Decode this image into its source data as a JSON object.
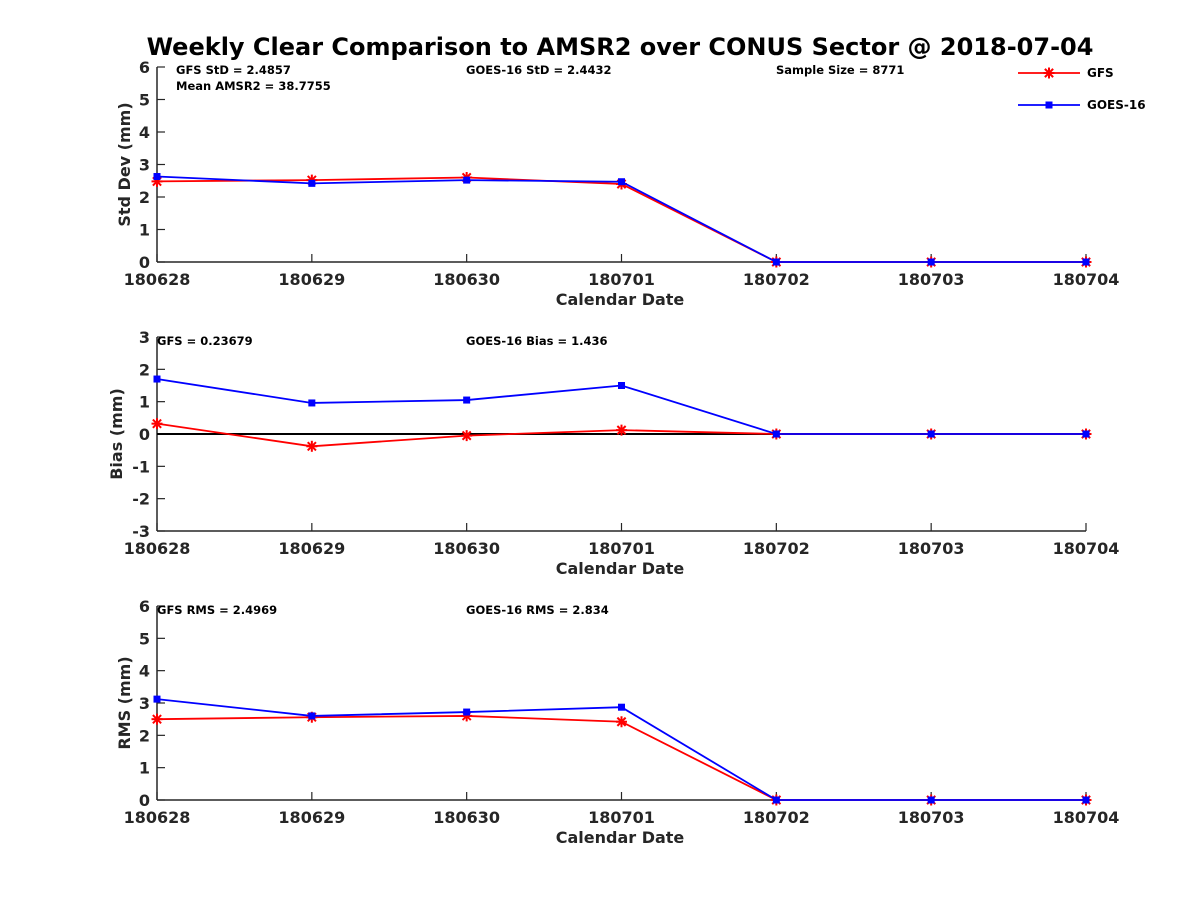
{
  "figure_title": "Weekly Clear Comparison to AMSR2 over CONUS Sector @ 2018-07-04",
  "legend": [
    {
      "name": "GFS",
      "color": "#ff0000",
      "marker": "asterisk"
    },
    {
      "name": "GOES-16",
      "color": "#0000ff",
      "marker": "square"
    }
  ],
  "chart_data": [
    {
      "type": "line",
      "categories": [
        "180628",
        "180629",
        "180630",
        "180701",
        "180702",
        "180703",
        "180704"
      ],
      "xlabel": "Calendar Date",
      "ylabel": "Std Dev (mm)",
      "ylim": [
        0,
        6
      ],
      "yticks": [
        "0",
        "1",
        "2",
        "3",
        "4",
        "5",
        "6"
      ],
      "zero_line": false,
      "annotations": [
        {
          "text": "GFS StD = 2.4857"
        },
        {
          "text": "Mean AMSR2 = 38.7755"
        },
        {
          "text": "GOES-16 StD = 2.4432"
        },
        {
          "text": "Sample Size = 8771"
        }
      ],
      "series": [
        {
          "name": "GFS",
          "color": "#ff0000",
          "marker": "asterisk",
          "values": [
            2.48,
            2.52,
            2.6,
            2.4,
            0,
            0,
            0
          ]
        },
        {
          "name": "GOES-16",
          "color": "#0000ff",
          "marker": "square",
          "values": [
            2.63,
            2.42,
            2.52,
            2.47,
            0,
            0,
            0
          ]
        }
      ]
    },
    {
      "type": "line",
      "categories": [
        "180628",
        "180629",
        "180630",
        "180701",
        "180702",
        "180703",
        "180704"
      ],
      "xlabel": "Calendar Date",
      "ylabel": "Bias (mm)",
      "ylim": [
        -3,
        3
      ],
      "yticks": [
        "-3",
        "-2",
        "-1",
        "0",
        "1",
        "2",
        "3"
      ],
      "zero_line": true,
      "annotations": [
        {
          "text": "GFS = 0.23679"
        },
        {
          "text": "GOES-16 Bias  = 1.436"
        }
      ],
      "series": [
        {
          "name": "GFS",
          "color": "#ff0000",
          "marker": "asterisk",
          "values": [
            0.32,
            -0.38,
            -0.05,
            0.12,
            0,
            0,
            0
          ]
        },
        {
          "name": "GOES-16",
          "color": "#0000ff",
          "marker": "square",
          "values": [
            1.7,
            0.96,
            1.05,
            1.5,
            0,
            0,
            0
          ]
        }
      ]
    },
    {
      "type": "line",
      "categories": [
        "180628",
        "180629",
        "180630",
        "180701",
        "180702",
        "180703",
        "180704"
      ],
      "xlabel": "Calendar Date",
      "ylabel": "RMS (mm)",
      "ylim": [
        0,
        6
      ],
      "yticks": [
        "0",
        "1",
        "2",
        "3",
        "4",
        "5",
        "6"
      ],
      "zero_line": false,
      "annotations": [
        {
          "text": "GFS RMS = 2.4969"
        },
        {
          "text": "GOES-16 RMS = 2.834"
        }
      ],
      "series": [
        {
          "name": "GFS",
          "color": "#ff0000",
          "marker": "asterisk",
          "values": [
            2.5,
            2.56,
            2.6,
            2.42,
            0,
            0,
            0
          ]
        },
        {
          "name": "GOES-16",
          "color": "#0000ff",
          "marker": "square",
          "values": [
            3.12,
            2.6,
            2.72,
            2.87,
            0,
            0,
            0
          ]
        }
      ]
    }
  ]
}
